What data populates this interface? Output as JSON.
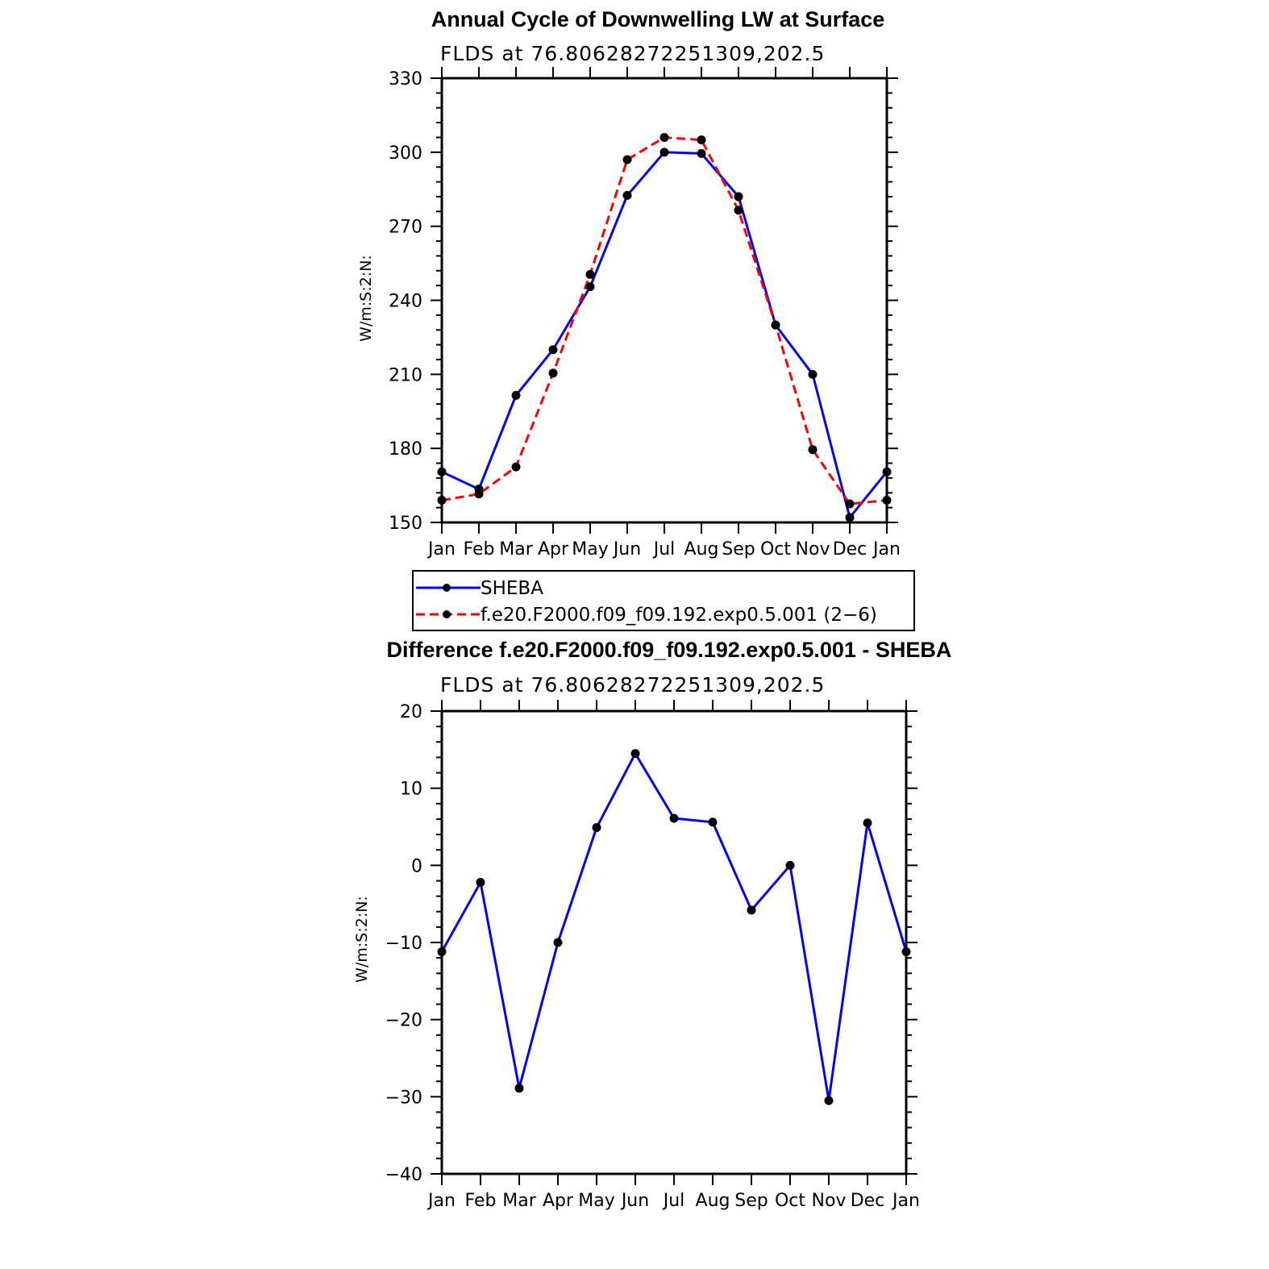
{
  "colors": {
    "sheba": "#0000ff",
    "model": "#ff0000",
    "marker": "#000000",
    "axis": "#000000"
  },
  "top": {
    "title": "Annual Cycle of Downwelling LW at Surface",
    "subtitle": "FLDS at 76.80628272251309,202.5",
    "ylabel": "W/m:S:2:N:"
  },
  "bottom": {
    "title": "Difference f.e20.F2000.f09_f09.192.exp0.5.001 - SHEBA",
    "subtitle": "FLDS at 76.80628272251309,202.5",
    "ylabel": "W/m:S:2:N:"
  },
  "legend": {
    "items": [
      {
        "label": "SHEBA",
        "style": "solid",
        "color": "#0000ff"
      },
      {
        "label": "f.e20.F2000.f09_f09.192.exp0.5.001 (2−6)",
        "style": "dashed",
        "color": "#ff0000"
      }
    ],
    "placement": "between-panels"
  },
  "chart_data": [
    {
      "type": "line",
      "categories": [
        "Jan",
        "Feb",
        "Mar",
        "Apr",
        "May",
        "Jun",
        "Jul",
        "Aug",
        "Sep",
        "Oct",
        "Nov",
        "Dec",
        "Jan"
      ],
      "ylim": [
        150,
        330
      ],
      "yticks": [
        "330",
        "300",
        "270",
        "240",
        "210",
        "180",
        "150"
      ],
      "ytick_values": [
        330,
        300,
        270,
        240,
        210,
        180,
        150
      ],
      "series": [
        {
          "name": "SHEBA",
          "values": [
            170.5,
            163.5,
            201.5,
            220,
            245.5,
            282.5,
            300,
            299.5,
            282,
            230,
            210,
            152,
            170.5
          ]
        },
        {
          "name": "f.e20.F2000.f09_f09.192.exp0.5.001 (2−6)",
          "values": [
            159,
            161.5,
            172.5,
            210.5,
            250.5,
            297,
            306,
            305,
            276.5,
            230,
            179.5,
            157.5,
            159
          ]
        }
      ]
    },
    {
      "type": "line",
      "categories": [
        "Jan",
        "Feb",
        "Mar",
        "Apr",
        "May",
        "Jun",
        "Jul",
        "Aug",
        "Sep",
        "Oct",
        "Nov",
        "Dec",
        "Jan"
      ],
      "ylim": [
        -40,
        20
      ],
      "yticks": [
        "20",
        "10",
        "0",
        "−10",
        "−20",
        "−30",
        "−40"
      ],
      "ytick_values": [
        20,
        10,
        0,
        -10,
        -20,
        -30,
        -40
      ],
      "series": [
        {
          "values": [
            -11.2,
            -2.2,
            -28.9,
            -10,
            4.9,
            14.5,
            6.1,
            5.6,
            -5.8,
            0,
            -30.5,
            5.5,
            -11.2
          ]
        }
      ]
    }
  ]
}
